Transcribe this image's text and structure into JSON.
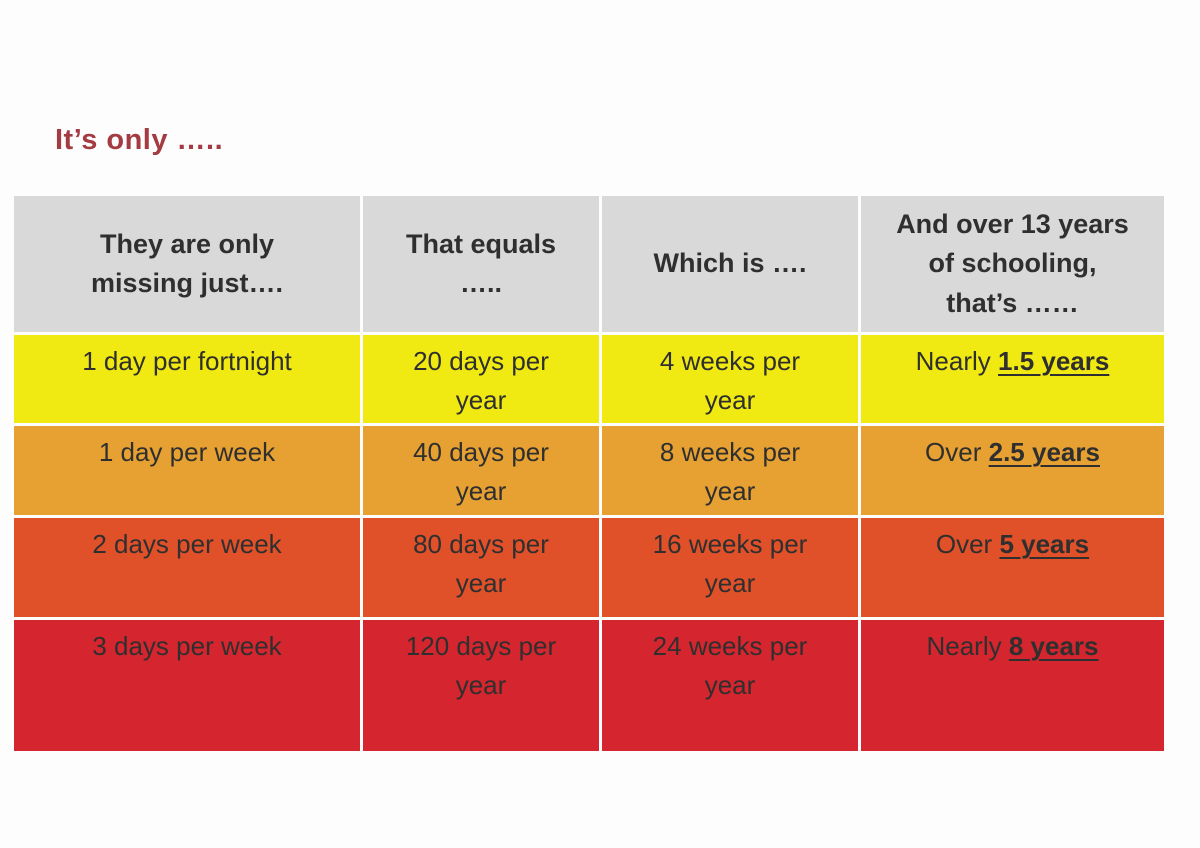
{
  "page": {
    "title": "It’s only ….."
  },
  "colors": {
    "title": "#a43a42",
    "header_bg": "#d9d9d9",
    "text": "#2f2f2f"
  },
  "table": {
    "headers": [
      "They are only\nmissing just….",
      "That equals\n…..",
      "Which is ….",
      "And over 13 years\nof schooling,\nthat’s ……"
    ],
    "rows": [
      {
        "missing": "1 day per fortnight",
        "equals": "20 days per\nyear",
        "which_is": "4 weeks per\nyear",
        "schooling_prefix": "Nearly",
        "schooling_value": "1.5 years",
        "color": "#f0ea12"
      },
      {
        "missing": "1 day per week",
        "equals": "40 days per\nyear",
        "which_is": "8 weeks per\nyear",
        "schooling_prefix": "Over",
        "schooling_value": "2.5 years",
        "color": "#e7a132"
      },
      {
        "missing": "2 days per week",
        "equals": "80 days per\nyear",
        "which_is": "16 weeks per\nyear",
        "schooling_prefix": "Over",
        "schooling_value": "5 years",
        "color": "#e0512a"
      },
      {
        "missing": "3 days per week",
        "equals": "120 days per\nyear",
        "which_is": "24 weeks per\nyear",
        "schooling_prefix": "Nearly",
        "schooling_value": "8 years",
        "color": "#d5252e"
      }
    ]
  }
}
